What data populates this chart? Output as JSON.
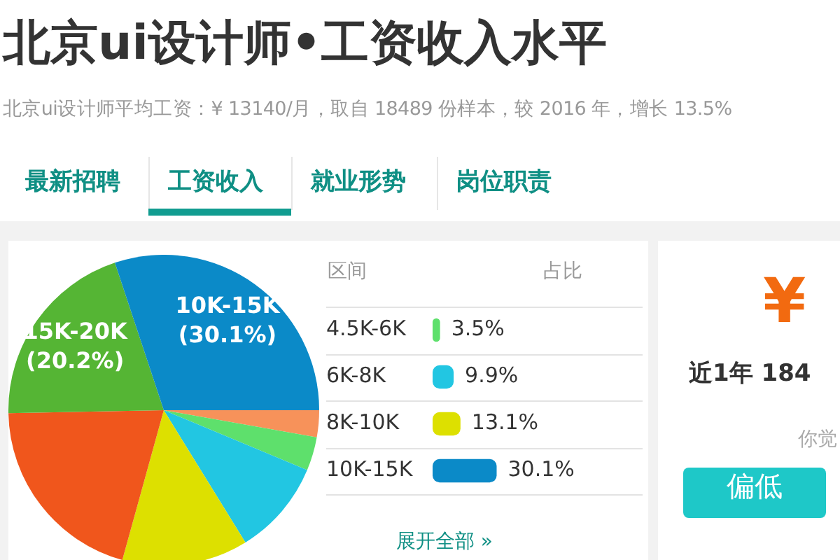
{
  "chart_data": [
    {
      "type": "pie",
      "title": "北京ui设计师•工资收入水平",
      "subtitle": "北京ui设计师平均工资：¥ 13140/月，取自 18489 份样本，较 2016 年，增长 13.5%",
      "annotations": [
        "最新招聘",
        "工资收入",
        "就业形势",
        "岗位职责"
      ],
      "categories": [
        null,
        null,
        null,
        null,
        null,
        "15K-20K",
        "10K-15K"
      ],
      "values": [
        2.8,
        3.5,
        9.9,
        13.1,
        20.4,
        20.2,
        30.1
      ],
      "colors": [
        "#f7925a",
        "#5ee06c",
        "#22c6e2",
        "#dde000",
        "#f0561c",
        "#55b534",
        "#0b8ac8"
      ],
      "value_labels": [
        null,
        null,
        null,
        null,
        null,
        "(20.2%)",
        "(30.1%)"
      ],
      "legend": false
    },
    {
      "type": "bar",
      "orientation": "horizontal",
      "ylabel": "区间",
      "xlabel": "占比",
      "annotations": [
        "展开全部 »"
      ],
      "categories": [
        "4.5K-6K",
        "6K-8K",
        "8K-10K",
        "10K-15K"
      ],
      "values": [
        3.5,
        9.9,
        13.1,
        30.1
      ],
      "colors": [
        "#5ee06c",
        "#22c6e2",
        "#dde000",
        "#0b8ac8"
      ],
      "value_labels": [
        "3.5%",
        "9.9%",
        "13.1%",
        "30.1%"
      ],
      "legend": false
    },
    {
      "type": "other",
      "annotations": [
        "¥",
        "近1年 184",
        "你觉",
        "偏低"
      ]
    }
  ]
}
